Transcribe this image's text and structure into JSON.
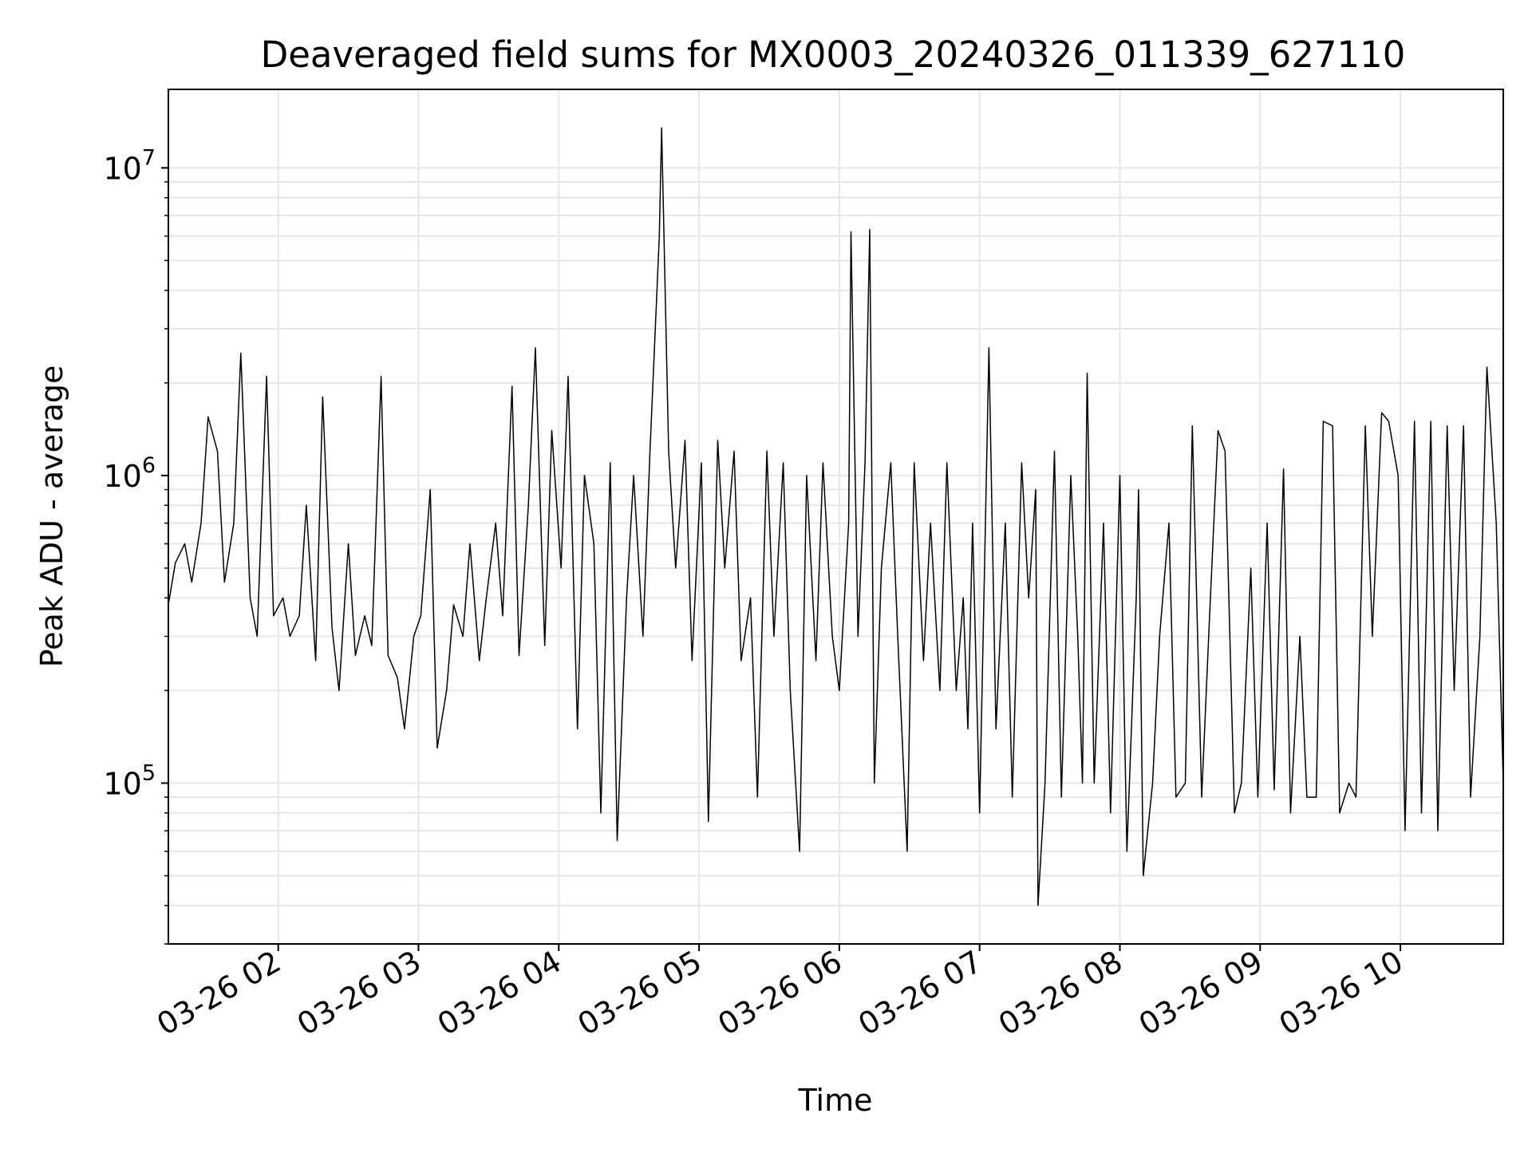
{
  "chart_data": {
    "type": "line",
    "title": "Deaveraged field sums for MX0003_20240326_011339_627110",
    "xlabel": "Time",
    "ylabel": "Peak ADU - average",
    "x_axis": {
      "kind": "datetime",
      "range": [
        "03-26 01:13",
        "03-26 10:44"
      ],
      "ticks": [
        "03-26 02",
        "03-26 03",
        "03-26 04",
        "03-26 05",
        "03-26 06",
        "03-26 07",
        "03-26 08",
        "03-26 09",
        "03-26 10"
      ],
      "tick_rotation": 30
    },
    "y_axis": {
      "scale": "log",
      "range": [
        30000,
        18000000
      ],
      "ticks": [
        {
          "value": 100000,
          "base": "10",
          "exp": "5"
        },
        {
          "value": 1000000,
          "base": "10",
          "exp": "6"
        },
        {
          "value": 10000000,
          "base": "10",
          "exp": "7"
        }
      ]
    },
    "grid": {
      "major": true,
      "minor_y": true
    },
    "colors": {
      "line": "#000000",
      "grid": "#e6e6e6",
      "frame": "#000000"
    },
    "series": [
      {
        "x": [
          "03-26 01:13",
          "03-26 01:16",
          "03-26 01:20",
          "03-26 01:23",
          "03-26 01:27",
          "03-26 01:30",
          "03-26 01:34",
          "03-26 01:37",
          "03-26 01:41",
          "03-26 01:44",
          "03-26 01:48",
          "03-26 01:51",
          "03-26 01:55",
          "03-26 01:58",
          "03-26 02:02",
          "03-26 02:05",
          "03-26 02:09",
          "03-26 02:12",
          "03-26 02:16",
          "03-26 02:19",
          "03-26 02:23",
          "03-26 02:26",
          "03-26 02:30",
          "03-26 02:33",
          "03-26 02:37",
          "03-26 02:40",
          "03-26 02:44",
          "03-26 02:47",
          "03-26 02:51",
          "03-26 02:54",
          "03-26 02:58",
          "03-26 03:01",
          "03-26 03:05",
          "03-26 03:08",
          "03-26 03:12",
          "03-26 03:15",
          "03-26 03:19",
          "03-26 03:22",
          "03-26 03:26",
          "03-26 03:29",
          "03-26 03:33",
          "03-26 03:36",
          "03-26 03:40",
          "03-26 03:43",
          "03-26 03:47",
          "03-26 03:50",
          "03-26 03:54",
          "03-26 03:57",
          "03-26 04:01",
          "03-26 04:04",
          "03-26 04:08",
          "03-26 04:11",
          "03-26 04:15",
          "03-26 04:18",
          "03-26 04:22",
          "03-26 04:25",
          "03-26 04:29",
          "03-26 04:32",
          "03-26 04:36",
          "03-26 04:39",
          "03-26 04:43",
          "03-26 04:44",
          "03-26 04:47",
          "03-26 04:50",
          "03-26 04:54",
          "03-26 04:57",
          "03-26 05:01",
          "03-26 05:04",
          "03-26 05:08",
          "03-26 05:11",
          "03-26 05:15",
          "03-26 05:18",
          "03-26 05:22",
          "03-26 05:25",
          "03-26 05:29",
          "03-26 05:32",
          "03-26 05:36",
          "03-26 05:39",
          "03-26 05:43",
          "03-26 05:46",
          "03-26 05:50",
          "03-26 05:53",
          "03-26 05:57",
          "03-26 06:00",
          "03-26 06:04",
          "03-26 06:05",
          "03-26 06:08",
          "03-26 06:11",
          "03-26 06:13",
          "03-26 06:15",
          "03-26 06:18",
          "03-26 06:22",
          "03-26 06:25",
          "03-26 06:29",
          "03-26 06:32",
          "03-26 06:36",
          "03-26 06:39",
          "03-26 06:43",
          "03-26 06:46",
          "03-26 06:50",
          "03-26 06:53",
          "03-26 06:55",
          "03-26 06:57",
          "03-26 07:00",
          "03-26 07:04",
          "03-26 07:07",
          "03-26 07:11",
          "03-26 07:14",
          "03-26 07:18",
          "03-26 07:21",
          "03-26 07:24",
          "03-26 07:25",
          "03-26 07:28",
          "03-26 07:32",
          "03-26 07:35",
          "03-26 07:39",
          "03-26 07:42",
          "03-26 07:44",
          "03-26 07:46",
          "03-26 07:49",
          "03-26 07:53",
          "03-26 07:56",
          "03-26 08:00",
          "03-26 08:03",
          "03-26 08:07",
          "03-26 08:08",
          "03-26 08:10",
          "03-26 08:14",
          "03-26 08:17",
          "03-26 08:21",
          "03-26 08:24",
          "03-26 08:28",
          "03-26 08:31",
          "03-26 08:35",
          "03-26 08:38",
          "03-26 08:42",
          "03-26 08:45",
          "03-26 08:49",
          "03-26 08:52",
          "03-26 08:56",
          "03-26 08:59",
          "03-26 09:03",
          "03-26 09:06",
          "03-26 09:10",
          "03-26 09:13",
          "03-26 09:17",
          "03-26 09:20",
          "03-26 09:24",
          "03-26 09:27",
          "03-26 09:31",
          "03-26 09:34",
          "03-26 09:38",
          "03-26 09:41",
          "03-26 09:45",
          "03-26 09:48",
          "03-26 09:52",
          "03-26 09:55",
          "03-26 09:59",
          "03-26 10:02",
          "03-26 10:06",
          "03-26 10:09",
          "03-26 10:13",
          "03-26 10:16",
          "03-26 10:20",
          "03-26 10:23",
          "03-26 10:27",
          "03-26 10:30",
          "03-26 10:34",
          "03-26 10:37",
          "03-26 10:41",
          "03-26 10:44"
        ],
        "y": [
          380000,
          520000,
          600000,
          450000,
          700000,
          1550000,
          1200000,
          450000,
          700000,
          2500000,
          400000,
          300000,
          2100000,
          350000,
          400000,
          300000,
          350000,
          800000,
          250000,
          1800000,
          320000,
          200000,
          600000,
          260000,
          350000,
          280000,
          2100000,
          260000,
          220000,
          150000,
          300000,
          350000,
          900000,
          130000,
          200000,
          380000,
          300000,
          600000,
          250000,
          400000,
          700000,
          350000,
          1950000,
          260000,
          800000,
          2600000,
          280000,
          1400000,
          500000,
          2100000,
          150000,
          1000000,
          600000,
          80000,
          1100000,
          65000,
          400000,
          1000000,
          300000,
          1200000,
          6000000,
          13500000,
          1200000,
          500000,
          1300000,
          250000,
          1100000,
          75000,
          1300000,
          500000,
          1200000,
          250000,
          400000,
          90000,
          1200000,
          300000,
          1100000,
          200000,
          60000,
          1000000,
          250000,
          1100000,
          300000,
          200000,
          700000,
          6200000,
          300000,
          1100000,
          6300000,
          100000,
          500000,
          1100000,
          300000,
          60000,
          1100000,
          250000,
          700000,
          200000,
          1100000,
          200000,
          400000,
          150000,
          700000,
          80000,
          2600000,
          150000,
          700000,
          90000,
          1100000,
          400000,
          900000,
          40000,
          100000,
          1200000,
          90000,
          1000000,
          300000,
          100000,
          2150000,
          100000,
          700000,
          80000,
          1000000,
          60000,
          400000,
          900000,
          50000,
          100000,
          300000,
          700000,
          90000,
          100000,
          1450000,
          90000,
          300000,
          1400000,
          1200000,
          80000,
          100000,
          500000,
          90000,
          700000,
          95000,
          1050000,
          80000,
          300000,
          90000,
          90000,
          1500000,
          1450000,
          80000,
          100000,
          90000,
          1450000,
          300000,
          1600000,
          1500000,
          1000000,
          70000,
          1500000,
          80000,
          1500000,
          70000,
          1450000,
          200000,
          1450000,
          90000,
          300000,
          2250000,
          700000,
          100000
        ]
      }
    ]
  }
}
